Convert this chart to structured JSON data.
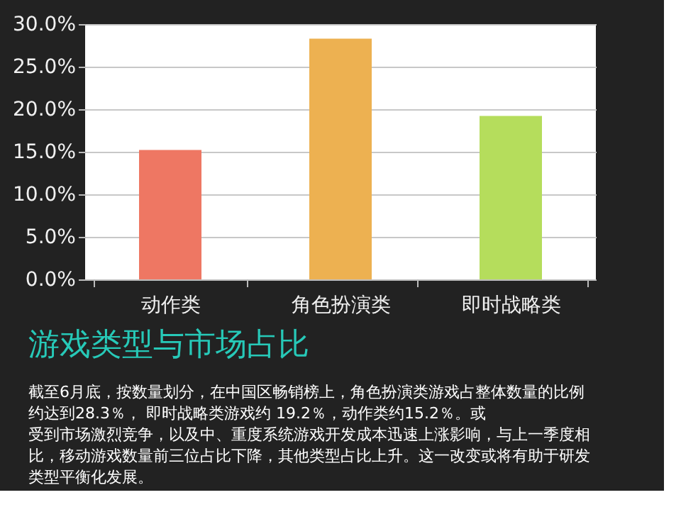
{
  "chart_data": {
    "type": "bar",
    "title": "游戏类型与市场占比",
    "categories": [
      "动作类",
      "角色扮演类",
      "即时战略类"
    ],
    "values": [
      15.2,
      28.3,
      19.2
    ],
    "colors": [
      "#ee7763",
      "#edb151",
      "#b5dd5c"
    ],
    "ylim": [
      0,
      30
    ],
    "yticks": [
      {
        "value": 0,
        "label": "0.0%"
      },
      {
        "value": 5,
        "label": "5.0%"
      },
      {
        "value": 10,
        "label": "10.0%"
      },
      {
        "value": 15,
        "label": "15.0%"
      },
      {
        "value": 20,
        "label": "20.0%"
      },
      {
        "value": 25,
        "label": "25.0%"
      },
      {
        "value": 30,
        "label": "30.0%"
      }
    ],
    "grid": "y",
    "annotations": [
      "截至6月底，按数量划分，在中国区畅销榜上，角色扮演类游戏占整体数量的比例约达到28.3％， 即时战略类游戏约 19.2％，动作类约15.2％。或受到市场激烈竞争，以及中、重度系统游戏开发成本迅速上涨影响，与上一季度相比，移动游戏数量前三位占比下降，其他类型占比上升。这一改变或将有助于研发类型平衡化发展。"
    ]
  }
}
